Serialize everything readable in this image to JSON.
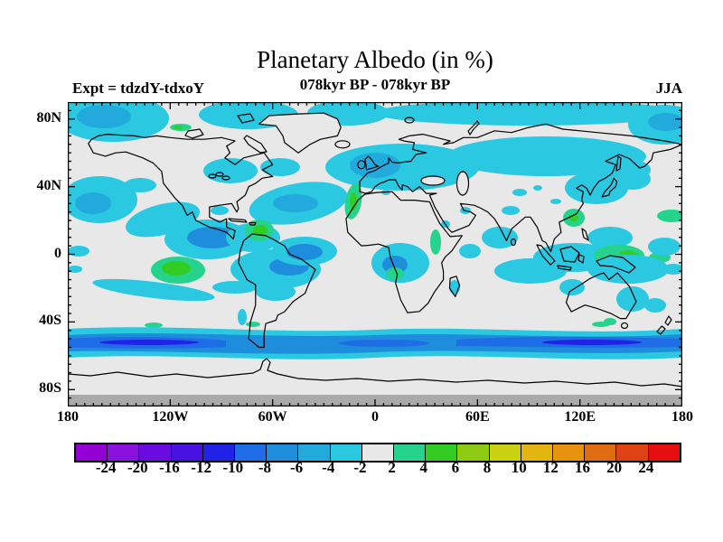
{
  "header": {
    "title": "Planetary Albedo (in %)",
    "subtitle": "078kyr BP - 078kyr BP",
    "experiment": "Expt = tdzdY-tdxoY",
    "season": "JJA"
  },
  "chart_data": {
    "type": "heatmap",
    "subtype": "filled-contour-world-map",
    "title": "Planetary Albedo (in %)",
    "subtitle": "078kyr BP - 078kyr BP",
    "experiment_label": "Expt = tdzdY-tdxoY",
    "season_label": "JJA",
    "units": "percent albedo difference",
    "x_axis": {
      "label_ticks": [
        "180",
        "120W",
        "60W",
        "0",
        "60E",
        "120E",
        "180"
      ],
      "range_deg": [
        -180,
        180
      ],
      "minor_tick_step_deg": 5,
      "major_tick_step_deg": 60
    },
    "y_axis": {
      "label_ticks": [
        "80N",
        "40N",
        "0",
        "40S",
        "80S"
      ],
      "range_deg": [
        -90,
        90
      ],
      "minor_tick_step_deg": 5,
      "major_tick_step_deg": 40
    },
    "colorbar": {
      "boundary_labels": [
        "-24",
        "-20",
        "-16",
        "-12",
        "-10",
        "-8",
        "-6",
        "-4",
        "-2",
        "2",
        "4",
        "6",
        "8",
        "10",
        "12",
        "16",
        "20",
        "24"
      ],
      "segment_colors": [
        "#9400D3",
        "#8A12DC",
        "#6C0BE0",
        "#4813E2",
        "#2222E6",
        "#1E6CE6",
        "#1E8EDC",
        "#22AADC",
        "#2BC8E2",
        "#E8E8E8",
        "#26D38C",
        "#33CC22",
        "#8FCC11",
        "#C8D211",
        "#E3B50E",
        "#E8930E",
        "#E06C12",
        "#E04313",
        "#E60F0F"
      ]
    },
    "map_colors": {
      "neutral_-2_to_2": "#E8E8E8",
      "level_-4_to_-2_cyan": "#2BC8E2",
      "level_-6_to_-4_cyanblue": "#22AADC",
      "level_-8_to_-6_blue": "#1E8EDC",
      "level_-10_to_-8_mediumblue": "#1E6CE6",
      "level_-12_to_-10_darkblue": "#2222E6",
      "level_2_to_4_springgreen": "#26D38C",
      "level_4_to_6_green": "#33CC22",
      "no_data_band": "#A9A9A9",
      "coastline": "#000000"
    },
    "features": [
      {
        "region": "Arctic Ocean rim and Bering/Chukchi seas",
        "value_range": "-6 to -2"
      },
      {
        "region": "Northern Eurasia band (Scandinavia to East Siberia)",
        "value_range": "-4 to -2"
      },
      {
        "region": "North Pacific and North Atlantic mid-latitude patches",
        "value_range": "-6 to -2"
      },
      {
        "region": "Eastern tropical Pacific off Central America",
        "value_range": "-8 to -4"
      },
      {
        "region": "Southeast tropical Pacific blob",
        "value_range": "+2 to +6"
      },
      {
        "region": "Northwest Africa coastal strip",
        "value_range": "+2 to +6"
      },
      {
        "region": "Caribbean / northern South America",
        "value_range": "+2 to +6"
      },
      {
        "region": "Amazon basin and tropical Atlantic",
        "value_range": "-8 to -2"
      },
      {
        "region": "Yellow Sea / Korea patch",
        "value_range": "+2 to +6"
      },
      {
        "region": "New Guinea / west equatorial Pacific",
        "value_range": "+2 to +6"
      },
      {
        "region": "Australia northeast and west coasts",
        "value_range": "-4 to -2"
      },
      {
        "region": "Circumpolar Southern Ocean band near 55-60S",
        "value_range": "-12 to -2"
      },
      {
        "region": "Antarctica interior south of ~83S",
        "value_range": "no data (gray)"
      },
      {
        "region": "Remaining areas",
        "value_range": "-2 to +2 (neutral gray)"
      }
    ]
  }
}
